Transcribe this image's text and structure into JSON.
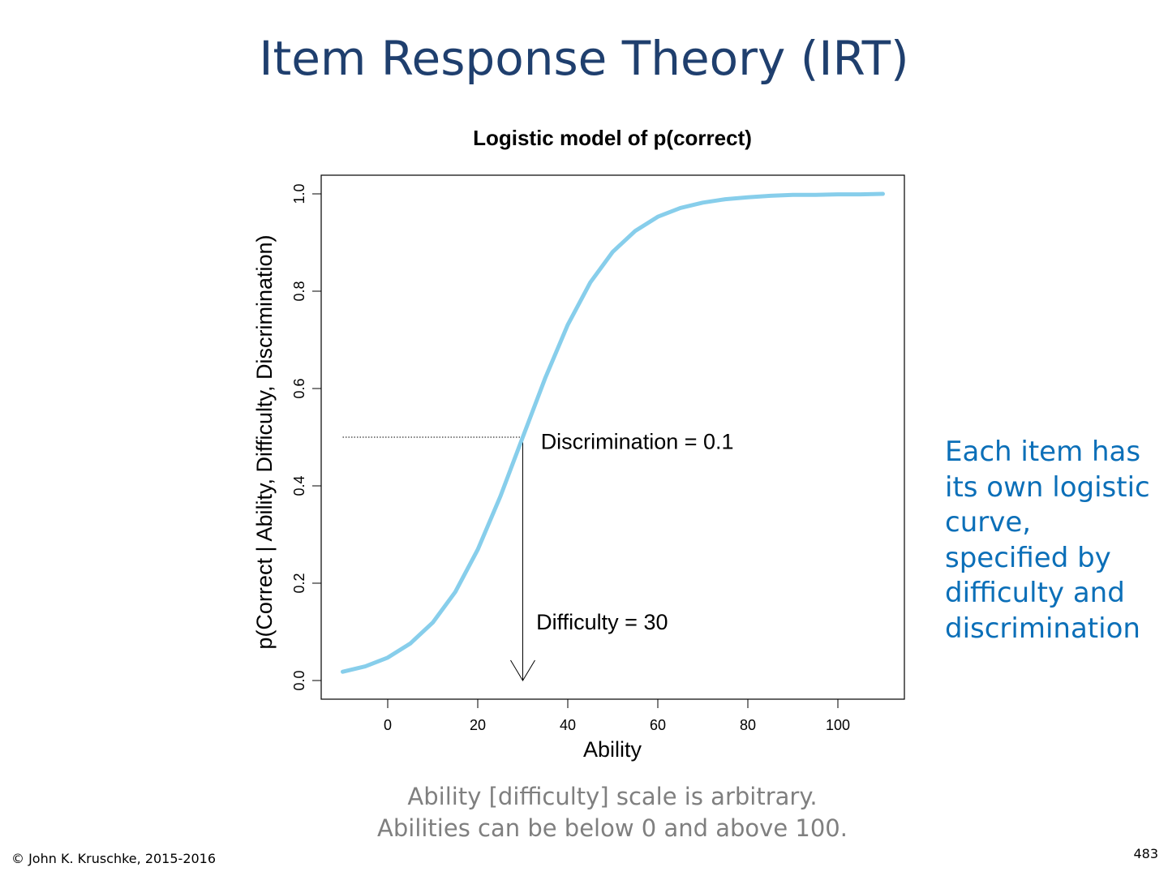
{
  "slide": {
    "title": "Item Response Theory (IRT)",
    "side_note_lines": [
      "Each item has",
      "its own logistic",
      "curve,",
      "specified by",
      "difficulty and",
      "discrimination"
    ],
    "caption_lines": [
      "Ability [difficulty] scale is arbitrary.",
      "Abilities can be below 0 and above 100."
    ],
    "copyright": "© John K. Kruschke, 2015-2016",
    "page_number": "483"
  },
  "chart_data": {
    "type": "line",
    "title": "Logistic model of p(correct)",
    "xlabel": "Ability",
    "ylabel": "p(Correct | Ability, Difficulty, Discrimination)",
    "xlim": [
      -15,
      115
    ],
    "ylim": [
      -0.04,
      1.04
    ],
    "xticks": [
      0,
      20,
      40,
      60,
      80,
      100
    ],
    "yticks": [
      "0.0",
      "0.2",
      "0.4",
      "0.6",
      "0.8",
      "1.0"
    ],
    "grid": false,
    "series": [
      {
        "color": "#87ceeb",
        "x": [
          -10,
          -5,
          0,
          5,
          10,
          15,
          20,
          25,
          30,
          35,
          40,
          45,
          50,
          55,
          60,
          65,
          70,
          75,
          80,
          85,
          90,
          95,
          100,
          105,
          110
        ],
        "y": [
          0.018,
          0.029,
          0.047,
          0.076,
          0.119,
          0.182,
          0.269,
          0.378,
          0.5,
          0.622,
          0.731,
          0.818,
          0.881,
          0.924,
          0.953,
          0.971,
          0.982,
          0.989,
          0.993,
          0.996,
          0.998,
          0.998,
          0.999,
          0.999,
          1.0
        ]
      }
    ],
    "reference_line": {
      "from_x": -10,
      "to_x": 30,
      "y": 0.5,
      "style": "dotted"
    },
    "arrow": {
      "x": 30,
      "from_y": 0.5,
      "to_y": 0.0
    },
    "annotations": [
      {
        "name": "discrimination",
        "label": "Discrimination",
        "op": "=",
        "value": "0.1",
        "x": 34,
        "y": 0.496
      },
      {
        "name": "difficulty",
        "label": "Difficulty",
        "op": "=",
        "value": "30",
        "x": 33,
        "y": 0.125
      }
    ]
  }
}
